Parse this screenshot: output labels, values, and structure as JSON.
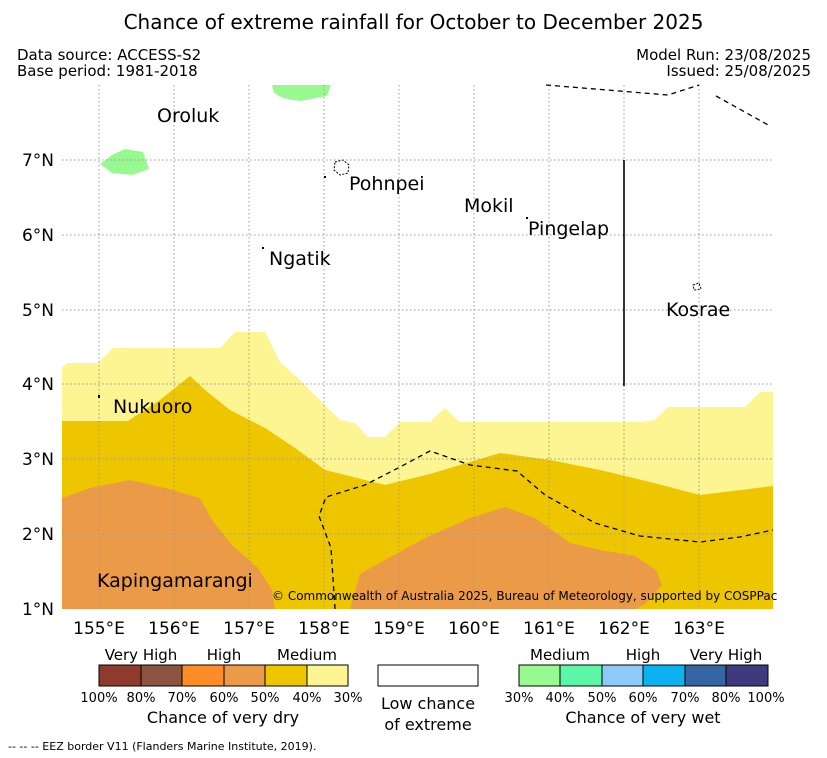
{
  "title": "Chance of extreme rainfall for October to December 2025",
  "meta": {
    "data_source": "Data source: ACCESS-S2",
    "base_period": "Base period: 1981-2018",
    "model_run": "Model Run: 23/08/2025",
    "issued": "Issued: 25/08/2025"
  },
  "axes": {
    "x_ticks": [
      "155°E",
      "156°E",
      "157°E",
      "158°E",
      "159°E",
      "160°E",
      "161°E",
      "162°E",
      "163°E"
    ],
    "y_ticks": [
      "7°N",
      "6°N",
      "5°N",
      "4°N",
      "3°N",
      "2°N",
      "1°N"
    ]
  },
  "places": {
    "oroluk": "Oroluk",
    "pohnpei": "Pohnpei",
    "mokil": "Mokil",
    "pingelap": "Pingelap",
    "ngatik": "Ngatik",
    "kosrae": "Kosrae",
    "nukuoro": "Nukuoro",
    "kapingamarangi": "Kapingamarangi"
  },
  "copyright": "© Commonwealth of Australia 2025, Bureau of Meteorology, supported by COSPPac",
  "colors": {
    "dry_very_high_100": "#8e3b2e",
    "dry_very_high_80": "#8b5340",
    "dry_high_70": "#ff8c26",
    "dry_high_60": "#eb9b48",
    "dry_medium_50": "#edc600",
    "dry_medium_40": "#fcf591",
    "wet_medium_30": "#98f991",
    "wet_medium_40": "#5cf7a6",
    "wet_high_50": "#8ccbf7",
    "wet_high_60": "#0bb2ef",
    "wet_very_high_70": "#3566a3",
    "wet_very_high_80": "#3d3b7e"
  },
  "legend": {
    "dry": {
      "headers": {
        "very_high": "Very High",
        "high": "High",
        "medium": "Medium"
      },
      "ticks": [
        "100%",
        "80%",
        "70%",
        "60%",
        "50%",
        "40%",
        "30%"
      ],
      "caption": "Chance of very dry"
    },
    "low": {
      "line1": "Low chance",
      "line2": "of extreme"
    },
    "wet": {
      "headers": {
        "medium": "Medium",
        "high": "High",
        "very_high": "Very High"
      },
      "ticks": [
        "30%",
        "40%",
        "50%",
        "60%",
        "70%",
        "80%",
        "100%"
      ],
      "caption": "Chance of very wet"
    }
  },
  "footer": "-- -- -- EEZ border V11 (Flanders Marine Institute, 2019)."
}
